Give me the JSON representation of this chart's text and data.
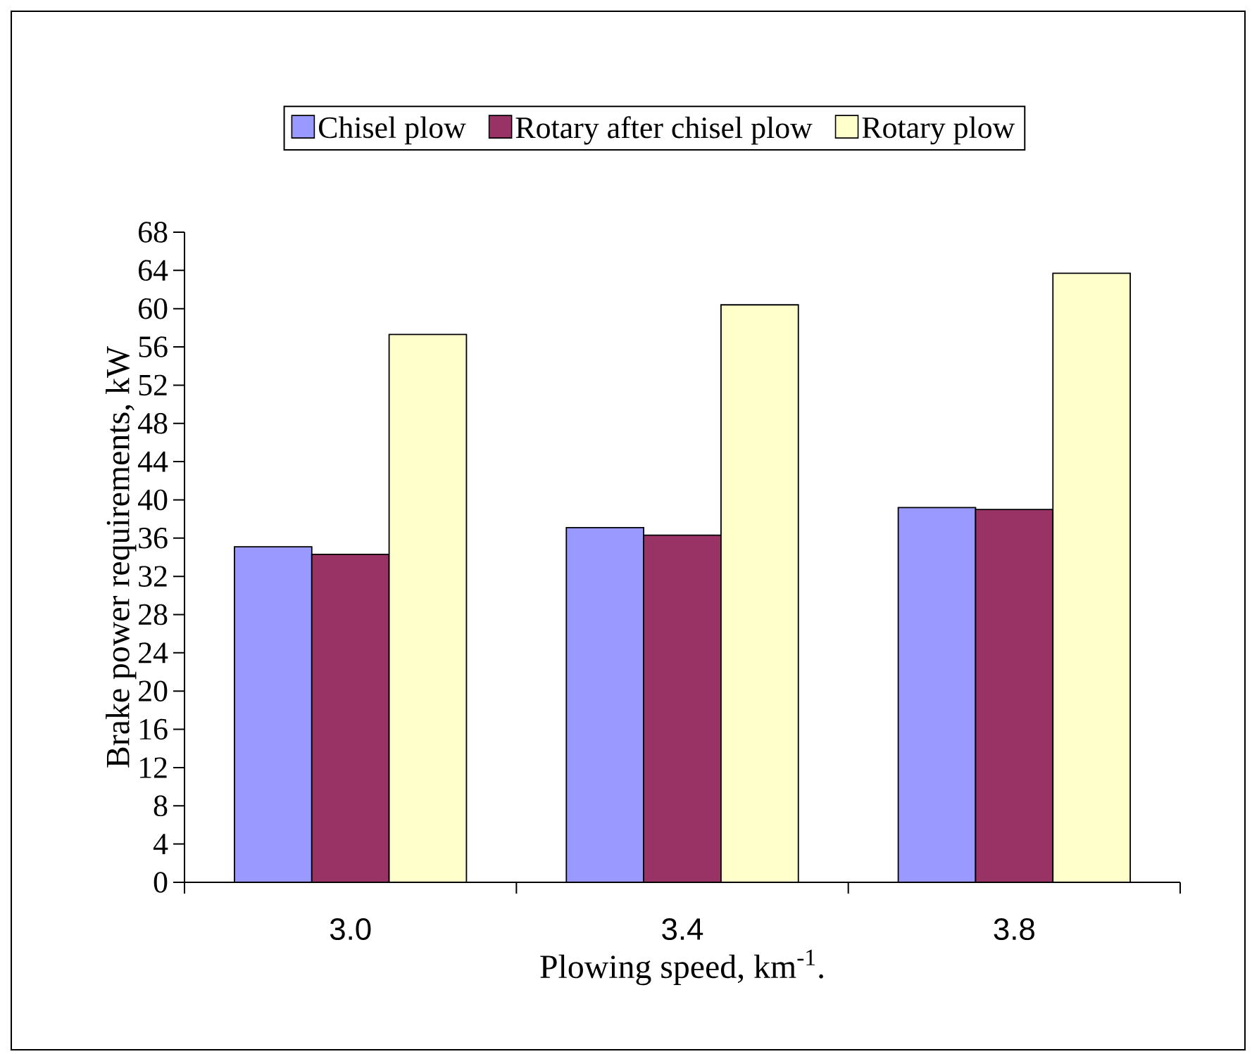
{
  "chart_data": {
    "type": "bar",
    "xlabel": "Plowing speed, km$^{-1}$.",
    "ylabel": "Brake power requirements, kW",
    "categories": [
      "3.0",
      "3.4",
      "3.8"
    ],
    "series": [
      {
        "name": "Chisel plow",
        "color": "#9999ff",
        "values": [
          35.1,
          37.1,
          39.2
        ]
      },
      {
        "name": "Rotary after chisel plow",
        "color": "#993366",
        "values": [
          34.3,
          36.3,
          39.0
        ]
      },
      {
        "name": "Rotary plow",
        "color": "#ffffcc",
        "values": [
          57.3,
          60.4,
          63.7
        ]
      }
    ],
    "ylim": [
      0,
      68
    ],
    "yticks": [
      0,
      4,
      8,
      12,
      16,
      20,
      24,
      28,
      32,
      36,
      40,
      44,
      48,
      52,
      56,
      60,
      64,
      68
    ],
    "grid": false,
    "legend": "top"
  }
}
